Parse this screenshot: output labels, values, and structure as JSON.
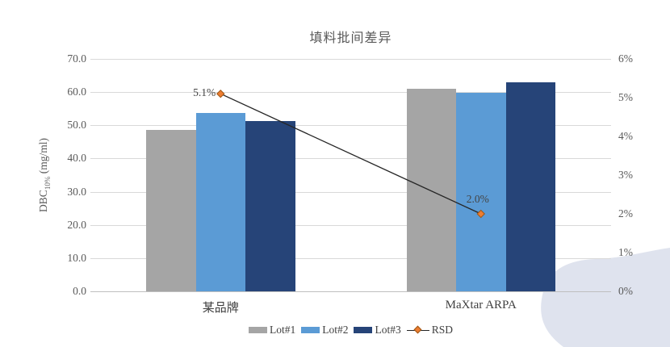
{
  "page": {
    "background": "#ffffff",
    "decor_blob_color": "#dfe3ee"
  },
  "chart_data": {
    "type": "bar",
    "subtype": "grouped bars with line overlay (combo chart)",
    "title": "填料批间差异",
    "categories": [
      "某品牌",
      "MaXtar ARPA"
    ],
    "series": [
      {
        "name": "Lot#1",
        "type": "bar",
        "color": "#a5a5a5",
        "values": [
          48.5,
          61.0
        ]
      },
      {
        "name": "Lot#2",
        "type": "bar",
        "color": "#5b9bd5",
        "values": [
          53.7,
          59.8
        ]
      },
      {
        "name": "Lot#3",
        "type": "bar",
        "color": "#264478",
        "values": [
          51.3,
          62.9
        ]
      },
      {
        "name": "RSD",
        "type": "line",
        "color": "#262626",
        "marker": "diamond",
        "marker_fill": "#ed7d31",
        "marker_stroke": "#9c5514",
        "values": [
          5.1,
          2.0
        ],
        "labels": [
          "5.1%",
          "2.0%"
        ],
        "axis": "right"
      }
    ],
    "left_axis": {
      "title_main": "DBC",
      "title_sub": "10%",
      "title_unit": " (mg/ml)",
      "min": 0,
      "max": 70,
      "step": 10,
      "ticks": [
        "70.0",
        "60.0",
        "50.0",
        "40.0",
        "30.0",
        "20.0",
        "10.0",
        "0.0"
      ]
    },
    "right_axis": {
      "min": 0,
      "max": 6,
      "step": 1,
      "ticks": [
        "6%",
        "5%",
        "4%",
        "3%",
        "2%",
        "1%",
        "0%"
      ]
    },
    "legend": {
      "position": "bottom",
      "entries": [
        "Lot#1",
        "Lot#2",
        "Lot#3",
        "RSD"
      ]
    },
    "grid": "horizontal"
  }
}
